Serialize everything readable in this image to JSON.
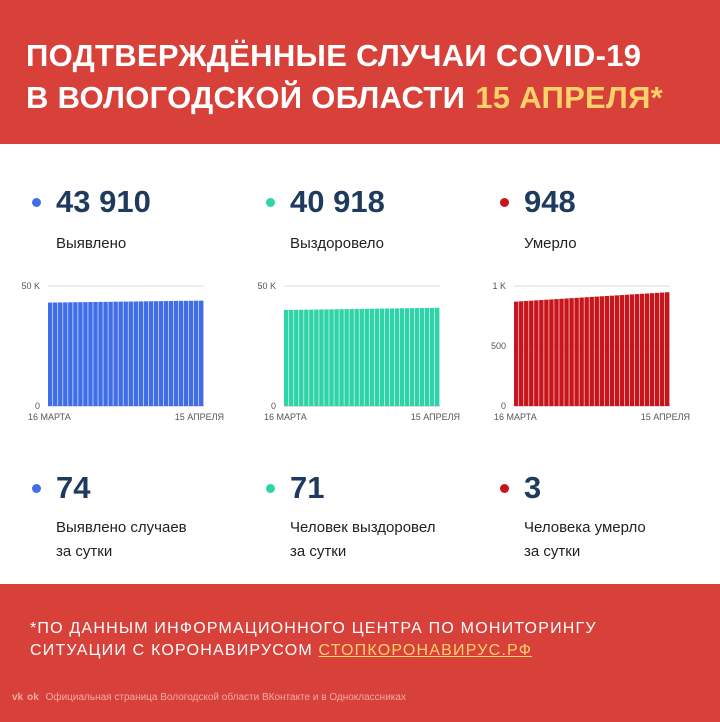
{
  "header": {
    "line1": "ПОДТВЕРЖДЁННЫЕ СЛУЧАИ COVID-19",
    "line2": "В ВОЛОГОДСКОЙ ОБЛАСТИ",
    "date": "15 АПРЕЛЯ*",
    "date_color": "#ffd16a"
  },
  "stats": [
    {
      "value": "43 910",
      "label": "Выявлено",
      "color": "#3f6ee8"
    },
    {
      "value": "40 918",
      "label": "Выздоровело",
      "color": "#2ed3a7"
    },
    {
      "value": "948",
      "label": "Умерло",
      "color": "#c8141b"
    }
  ],
  "charts": [
    {
      "ymax_label": "50 K",
      "zero": "0",
      "x_start": "16 МАРТА",
      "x_end": "15 АПРЕЛЯ",
      "ymax": 50000,
      "start": 43100,
      "end": 43910,
      "color": "#3f6ee8",
      "ticks": [
        "50 K",
        "0"
      ]
    },
    {
      "ymax_label": "50 K",
      "zero": "0",
      "x_start": "16 МАРТА",
      "x_end": "15 АПРЕЛЯ",
      "ymax": 50000,
      "start": 40000,
      "end": 40918,
      "color": "#2ed3a7",
      "ticks": [
        "50 K",
        "0"
      ]
    },
    {
      "ymax_label": "1 K",
      "mid_label": "500",
      "zero": "0",
      "x_start": "16 МАРТА",
      "x_end": "15 АПРЕЛЯ",
      "ymax": 1000,
      "start": 870,
      "end": 948,
      "color": "#c8141b"
    }
  ],
  "daily": [
    {
      "value": "74",
      "label1": "Выявлено случаев",
      "label2": "за сутки",
      "color": "#3f6ee8"
    },
    {
      "value": "71",
      "label1": "Человек выздоровел",
      "label2": "за сутки",
      "color": "#2ed3a7"
    },
    {
      "value": "3",
      "label1": "Человека умерло",
      "label2": "за сутки",
      "color": "#c8141b"
    }
  ],
  "footer": {
    "note_line1": "*ПО ДАННЫМ ИНФОРМАЦИОННОГО ЦЕНТРА ПО МОНИТОРИНГУ",
    "note_line2": "СИТУАЦИИ С КОРОНАВИРУСОМ",
    "link": "СТОПКОРОНАВИРУС.РФ",
    "vk_icon": "vk-icon",
    "ok_icon": "odnoklassniki-icon",
    "social_text": "Официальная страница Вологодской области ВКонтакте и в Одноклассниках"
  }
}
